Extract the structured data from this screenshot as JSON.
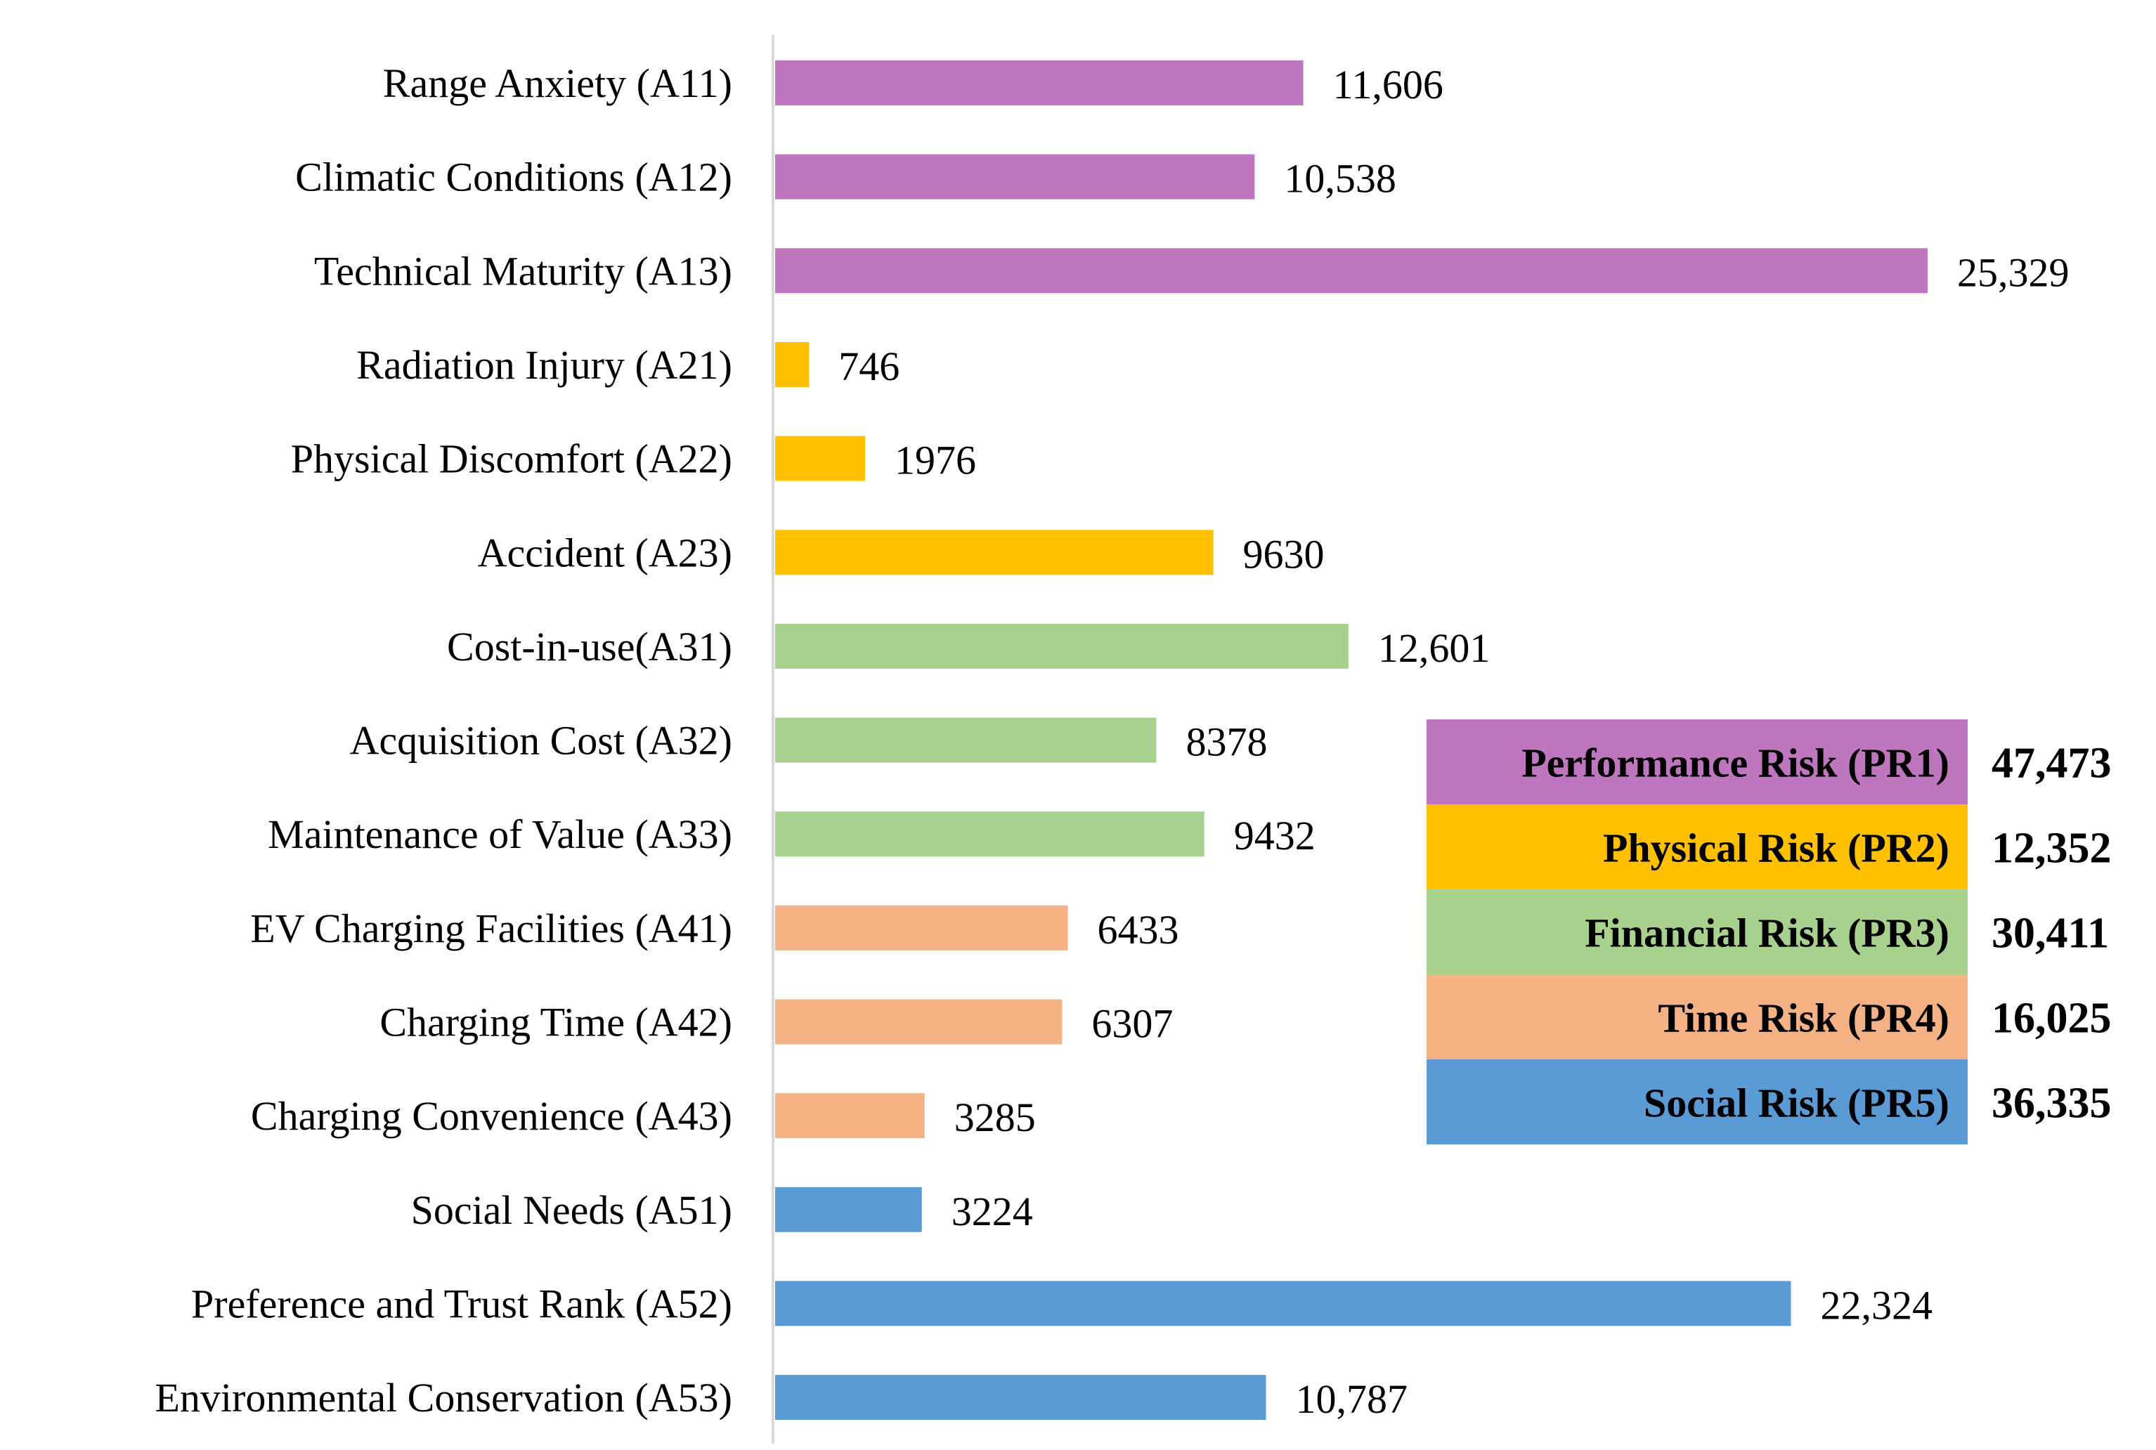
{
  "chart_data": {
    "type": "bar",
    "orientation": "horizontal",
    "title": "",
    "xlabel": "",
    "ylabel": "",
    "xlim": [
      0,
      28000
    ],
    "grid": false,
    "categories": [
      "Range Anxiety (A11)",
      "Climatic Conditions (A12)",
      "Technical Maturity (A13)",
      "Radiation Injury (A21)",
      "Physical Discomfort (A22)",
      "Accident (A23)",
      "Cost-in-use(A31)",
      "Acquisition Cost (A32)",
      "Maintenance of Value (A33)",
      "EV Charging Facilities (A41)",
      "Charging Time (A42)",
      "Charging Convenience (A43)",
      "Social Needs (A51)",
      "Preference and Trust Rank (A52)",
      "Environmental Conservation (A53)"
    ],
    "values": [
      11606,
      10538,
      25329,
      746,
      1976,
      9630,
      12601,
      8378,
      9432,
      6433,
      6307,
      3285,
      3224,
      22324,
      10787
    ],
    "value_labels": [
      "11,606",
      "10,538",
      "25,329",
      "746",
      "1976",
      "9630",
      "12,601",
      "8378",
      "9432",
      "6433",
      "6307",
      "3285",
      "3224",
      "22,324",
      "10,787"
    ],
    "groups": [
      0,
      0,
      0,
      1,
      1,
      1,
      2,
      2,
      2,
      3,
      3,
      3,
      4,
      4,
      4
    ],
    "legend_position": "right",
    "legend": [
      {
        "label": "Performance Risk (PR1)",
        "total": "47,473",
        "color": "#BE77BE"
      },
      {
        "label": "Physical Risk (PR2)",
        "total": "12,352",
        "color": "#FFC000"
      },
      {
        "label": "Financial Risk (PR3)",
        "total": "30,411",
        "color": "#A9D18E"
      },
      {
        "label": "Time Risk (PR4)",
        "total": "16,025",
        "color": "#F4B183"
      },
      {
        "label": "Social Risk (PR5)",
        "total": "36,335",
        "color": "#5B9BD5"
      }
    ]
  }
}
